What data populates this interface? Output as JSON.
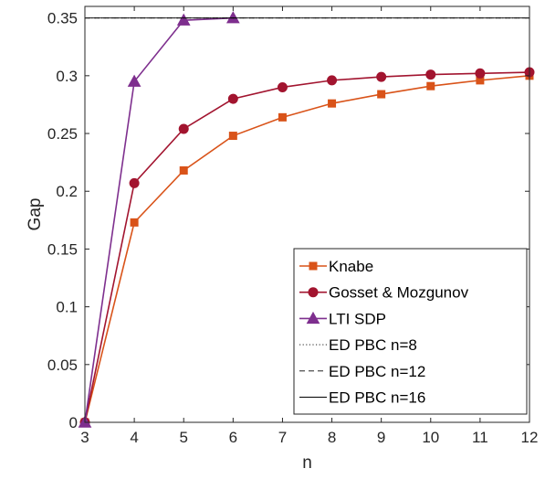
{
  "chart_data": {
    "type": "line",
    "title": "",
    "xlabel": "n",
    "ylabel": "Gap",
    "xlim": [
      3,
      12
    ],
    "ylim": [
      0,
      0.36
    ],
    "xticks": [
      3,
      4,
      5,
      6,
      7,
      8,
      9,
      10,
      11,
      12
    ],
    "yticks": [
      0,
      0.05,
      0.1,
      0.15,
      0.2,
      0.25,
      0.3,
      0.35
    ],
    "ytick_labels": [
      "0",
      "0.05",
      "0.1",
      "0.15",
      "0.2",
      "0.25",
      "0.3",
      "0.35"
    ],
    "grid": false,
    "legend_position": "bottom-right",
    "series": [
      {
        "name": "Knabe",
        "marker": "square",
        "color": "#D95319",
        "x": [
          3,
          4,
          5,
          6,
          7,
          8,
          9,
          10,
          11,
          12
        ],
        "y": [
          0,
          0.173,
          0.218,
          0.248,
          0.264,
          0.276,
          0.284,
          0.291,
          0.296,
          0.3
        ]
      },
      {
        "name": "Gosset & Mozgunov",
        "marker": "circle",
        "color": "#A2142F",
        "x": [
          3,
          4,
          5,
          6,
          7,
          8,
          9,
          10,
          11,
          12
        ],
        "y": [
          0,
          0.207,
          0.254,
          0.28,
          0.29,
          0.296,
          0.299,
          0.301,
          0.302,
          0.303
        ]
      },
      {
        "name": "LTI SDP",
        "marker": "triangle",
        "color": "#7E2F8E",
        "x": [
          3,
          4,
          5,
          6
        ],
        "y": [
          0,
          0.295,
          0.348,
          0.35
        ]
      },
      {
        "name": "ED PBC n=8",
        "style": "dotted",
        "color": "#000000",
        "y": 0.35
      },
      {
        "name": "ED PBC n=12",
        "style": "dashed",
        "color": "#000000",
        "y": 0.35
      },
      {
        "name": "ED PBC n=16",
        "style": "solid",
        "color": "#000000",
        "y": 0.35
      }
    ]
  }
}
